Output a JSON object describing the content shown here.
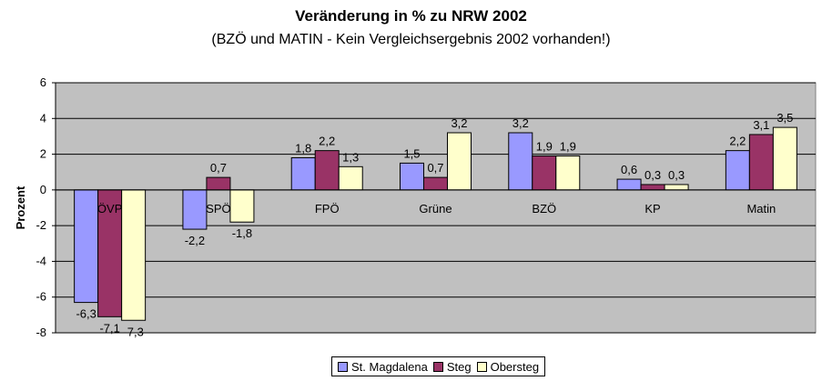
{
  "chart_data": {
    "type": "bar",
    "title": "Veränderung in % zu NRW 2002",
    "subtitle": "(BZÖ und MATIN - Kein Vergleichsergebnis 2002 vorhanden!)",
    "xlabel": "",
    "ylabel": "Prozent",
    "ylim": [
      -8,
      6
    ],
    "yticks": [
      -8,
      -6,
      -4,
      -2,
      0,
      2,
      4,
      6
    ],
    "ytick_labels": [
      "-8",
      "-6",
      "-4",
      "-2",
      "0",
      "2",
      "4",
      "6"
    ],
    "grid": true,
    "legend_position": "bottom",
    "categories": [
      "ÖVP",
      "SPÖ",
      "FPÖ",
      "Grüne",
      "BZÖ",
      "KP",
      "Matin"
    ],
    "series": [
      {
        "name": "St. Magdalena",
        "color": "#9999FF",
        "values": [
          -6.3,
          -2.2,
          1.8,
          1.5,
          3.2,
          0.6,
          2.2
        ],
        "labels": [
          "-6,3",
          "-2,2",
          "1,8",
          "1,5",
          "3,2",
          "0,6",
          "2,2"
        ]
      },
      {
        "name": "Steg",
        "color": "#993366",
        "values": [
          -7.1,
          0.7,
          2.2,
          0.7,
          1.9,
          0.3,
          3.1
        ],
        "labels": [
          "-7,1",
          "0,7",
          "2,2",
          "0,7",
          "1,9",
          "0,3",
          "3,1"
        ]
      },
      {
        "name": "Obersteg",
        "color": "#FFFFCC",
        "values": [
          -7.3,
          -1.8,
          1.3,
          3.2,
          1.9,
          0.3,
          3.5
        ],
        "labels": [
          "-7,3",
          "-1,8",
          "1,3",
          "3,2",
          "1,9",
          "0,3",
          "3,5"
        ]
      }
    ],
    "plot_background": "#C0C0C0"
  }
}
